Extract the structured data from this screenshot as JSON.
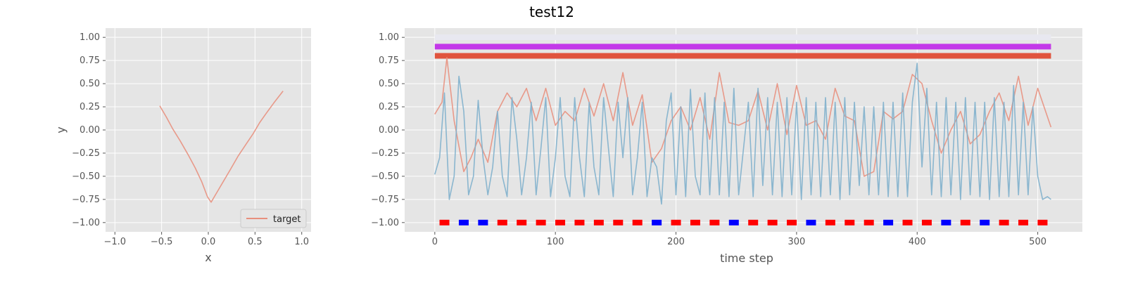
{
  "figure": {
    "title": "test12"
  },
  "chart_data": [
    {
      "type": "line",
      "panel": "left",
      "xlabel": "x",
      "ylabel": "y",
      "xlim": [
        -1.1,
        1.1
      ],
      "ylim": [
        -1.1,
        1.1
      ],
      "xticks": [
        "−1.0",
        "−0.5",
        "0.0",
        "0.5",
        "1.0"
      ],
      "yticks": [
        "1.00",
        "0.75",
        "0.50",
        "0.25",
        "0.00",
        "−0.25",
        "−0.50",
        "−0.75",
        "−1.00"
      ],
      "grid": true,
      "legend": {
        "placement": "lower-right",
        "entries": [
          "target"
        ]
      },
      "series": [
        {
          "name": "target",
          "color": "#e8907e",
          "x": [
            -0.52,
            -0.45,
            -0.38,
            -0.3,
            -0.22,
            -0.14,
            -0.07,
            -0.01,
            0.03,
            0.1,
            0.17,
            0.24,
            0.32,
            0.4,
            0.48,
            0.55,
            0.62,
            0.7,
            0.8
          ],
          "y": [
            0.26,
            0.14,
            0.01,
            -0.12,
            -0.26,
            -0.41,
            -0.56,
            -0.72,
            -0.78,
            -0.66,
            -0.54,
            -0.42,
            -0.28,
            -0.16,
            -0.04,
            0.08,
            0.18,
            0.29,
            0.42
          ]
        }
      ]
    },
    {
      "type": "line",
      "panel": "right",
      "xlabel": "time step",
      "ylabel": "",
      "xlim": [
        -25,
        537
      ],
      "ylim": [
        -1.1,
        1.1
      ],
      "xticks": [
        "0",
        "100",
        "200",
        "300",
        "400",
        "500"
      ],
      "yticks": [
        "1.00",
        "0.75",
        "0.50",
        "0.25",
        "0.00",
        "−0.25",
        "−0.50",
        "−0.75",
        "−1.00"
      ],
      "grid": true,
      "bands": [
        {
          "y": 1.0,
          "color": "#e8e8f0",
          "x": [
            0,
            511
          ]
        },
        {
          "y": 0.9,
          "color": "#c338e8",
          "x": [
            0,
            511
          ]
        },
        {
          "y": 0.8,
          "color": "#e0533d",
          "x": [
            0,
            511
          ]
        }
      ],
      "series": [
        {
          "color": "#e8907e",
          "x": [
            0,
            6,
            10,
            16,
            24,
            30,
            36,
            44,
            52,
            60,
            68,
            76,
            84,
            92,
            100,
            108,
            116,
            124,
            132,
            140,
            148,
            156,
            164,
            172,
            180,
            188,
            196,
            204,
            212,
            220,
            228,
            236,
            244,
            252,
            260,
            268,
            276,
            284,
            292,
            300,
            308,
            316,
            324,
            332,
            340,
            348,
            356,
            364,
            372,
            380,
            388,
            396,
            404,
            412,
            420,
            428,
            436,
            444,
            452,
            460,
            468,
            476,
            484,
            492,
            500,
            511
          ],
          "y": [
            0.17,
            0.3,
            0.78,
            0.1,
            -0.45,
            -0.3,
            -0.1,
            -0.35,
            0.2,
            0.4,
            0.25,
            0.45,
            0.1,
            0.45,
            0.05,
            0.2,
            0.1,
            0.45,
            0.15,
            0.5,
            0.1,
            0.62,
            0.05,
            0.38,
            -0.35,
            -0.2,
            0.1,
            0.25,
            0.0,
            0.35,
            -0.1,
            0.62,
            0.08,
            0.05,
            0.1,
            0.42,
            0.0,
            0.5,
            -0.05,
            0.48,
            0.05,
            0.1,
            -0.1,
            0.45,
            0.15,
            0.1,
            -0.5,
            -0.45,
            0.2,
            0.12,
            0.2,
            0.6,
            0.5,
            0.1,
            -0.25,
            0.0,
            0.2,
            -0.15,
            -0.05,
            0.2,
            0.4,
            0.1,
            0.58,
            0.05,
            0.45,
            0.03
          ]
        },
        {
          "color": "#7fb0cc",
          "x": [
            0,
            4,
            8,
            12,
            16,
            20,
            24,
            28,
            32,
            36,
            40,
            44,
            48,
            52,
            56,
            60,
            64,
            68,
            72,
            76,
            80,
            84,
            88,
            92,
            96,
            100,
            104,
            108,
            112,
            116,
            120,
            124,
            128,
            132,
            136,
            140,
            144,
            148,
            152,
            156,
            160,
            164,
            168,
            172,
            176,
            180,
            184,
            188,
            192,
            196,
            200,
            204,
            208,
            212,
            216,
            220,
            224,
            228,
            232,
            236,
            240,
            244,
            248,
            252,
            256,
            260,
            264,
            268,
            272,
            276,
            280,
            284,
            288,
            292,
            296,
            300,
            304,
            308,
            312,
            316,
            320,
            324,
            328,
            332,
            336,
            340,
            344,
            348,
            352,
            356,
            360,
            364,
            368,
            372,
            376,
            380,
            384,
            388,
            392,
            396,
            400,
            404,
            408,
            412,
            416,
            420,
            424,
            428,
            432,
            436,
            440,
            444,
            448,
            452,
            456,
            460,
            464,
            468,
            472,
            476,
            480,
            484,
            488,
            492,
            496,
            500,
            504,
            508,
            511
          ],
          "y": [
            -0.48,
            -0.3,
            0.4,
            -0.75,
            -0.5,
            0.58,
            0.2,
            -0.7,
            -0.5,
            0.32,
            -0.3,
            -0.7,
            -0.4,
            0.2,
            -0.5,
            -0.72,
            0.35,
            -0.1,
            -0.7,
            -0.3,
            0.3,
            -0.7,
            -0.2,
            0.35,
            -0.72,
            -0.3,
            0.35,
            -0.5,
            -0.72,
            0.35,
            -0.3,
            -0.72,
            0.3,
            -0.4,
            -0.7,
            0.35,
            -0.2,
            -0.72,
            0.3,
            -0.3,
            0.35,
            -0.7,
            -0.3,
            0.3,
            -0.72,
            -0.3,
            -0.4,
            -0.8,
            0.1,
            0.4,
            -0.7,
            0.25,
            -0.72,
            0.44,
            -0.5,
            -0.7,
            0.4,
            -0.7,
            0.35,
            -0.7,
            0.3,
            -0.72,
            0.45,
            -0.7,
            -0.2,
            0.3,
            -0.72,
            0.45,
            -0.6,
            0.35,
            -0.7,
            0.3,
            -0.72,
            0.35,
            -0.7,
            0.3,
            -0.75,
            0.35,
            -0.7,
            0.3,
            -0.72,
            0.35,
            -0.7,
            0.3,
            -0.75,
            0.35,
            -0.7,
            0.3,
            -0.6,
            0.25,
            -0.7,
            0.25,
            -0.7,
            0.3,
            -0.72,
            0.3,
            -0.72,
            0.4,
            -0.72,
            0.3,
            0.72,
            -0.4,
            0.45,
            -0.7,
            0.3,
            -0.72,
            0.35,
            -0.7,
            0.3,
            -0.75,
            0.35,
            -0.7,
            0.3,
            -0.72,
            0.3,
            -0.75,
            0.35,
            -0.72,
            0.3,
            -0.72,
            0.48,
            -0.7,
            0.3,
            -0.7,
            0.25,
            -0.5,
            -0.75,
            -0.72,
            -0.75
          ]
        }
      ],
      "markers": {
        "y": -1.0,
        "x": [
          8,
          24,
          40,
          56,
          72,
          88,
          104,
          120,
          136,
          152,
          168,
          184,
          200,
          216,
          232,
          248,
          264,
          280,
          296,
          312,
          328,
          344,
          360,
          376,
          392,
          408,
          424,
          440,
          456,
          472,
          488,
          504
        ],
        "colors": [
          "red",
          "blue",
          "blue",
          "red",
          "red",
          "red",
          "red",
          "red",
          "red",
          "red",
          "red",
          "blue",
          "red",
          "red",
          "red",
          "blue",
          "red",
          "red",
          "red",
          "blue",
          "red",
          "red",
          "red",
          "blue",
          "red",
          "red",
          "blue",
          "red",
          "blue",
          "red",
          "red",
          "red"
        ]
      }
    }
  ]
}
